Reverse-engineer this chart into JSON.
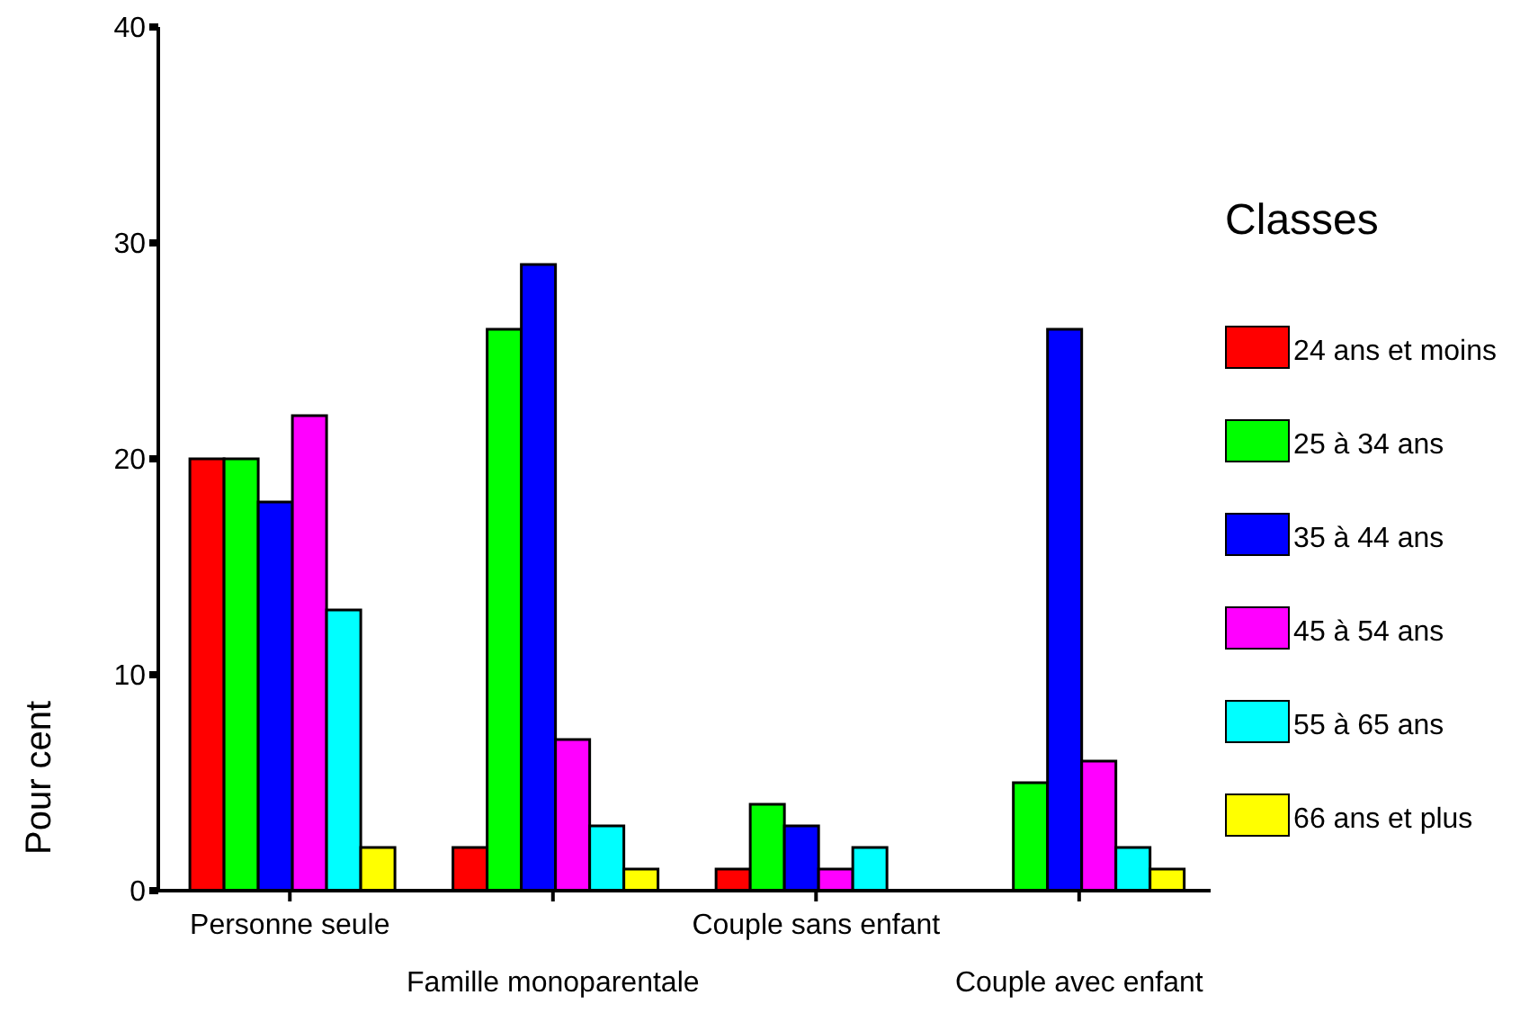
{
  "chart_data": {
    "type": "bar",
    "ylabel": "Pour cent",
    "legend_title": "Classes",
    "categories": [
      "Personne seule",
      "Famille monoparentale",
      "Couple sans enfant",
      "Couple avec enfant"
    ],
    "series": [
      {
        "name": "24 ans et moins",
        "color": "#ff0000",
        "values": [
          20,
          2,
          1,
          null
        ]
      },
      {
        "name": "25 à 34 ans",
        "color": "#00ff00",
        "values": [
          20,
          26,
          4,
          5
        ]
      },
      {
        "name": "35 à 44 ans",
        "color": "#0000ff",
        "values": [
          18,
          29,
          3,
          26
        ]
      },
      {
        "name": "45 à 54 ans",
        "color": "#ff00ff",
        "values": [
          22,
          7,
          1,
          6
        ]
      },
      {
        "name": "55 à 65 ans",
        "color": "#00ffff",
        "values": [
          13,
          3,
          2,
          2
        ]
      },
      {
        "name": "66 ans et plus",
        "color": "#ffff00",
        "values": [
          2,
          1,
          null,
          1
        ]
      }
    ],
    "ylim": [
      0,
      40
    ],
    "yticks": [
      0,
      10,
      20,
      30,
      40
    ],
    "grid": false,
    "legend": "right"
  }
}
